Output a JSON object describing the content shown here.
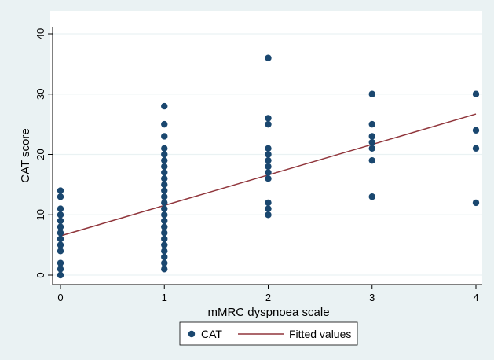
{
  "chart_data": {
    "type": "scatter",
    "xlabel": "mMRC dyspnoea scale",
    "ylabel": "CAT score",
    "xlim": [
      0,
      4
    ],
    "ylim": [
      0,
      40
    ],
    "x_ticks": [
      0,
      1,
      2,
      3,
      4
    ],
    "y_ticks": [
      0,
      10,
      20,
      30,
      40
    ],
    "x_tick_labels": [
      "0",
      "1",
      "2",
      "3",
      "4"
    ],
    "y_tick_labels": [
      "0",
      "10",
      "20",
      "30",
      "40"
    ],
    "grid": "horizontal",
    "legend_position": "bottom",
    "series": [
      {
        "name": "CAT",
        "kind": "scatter",
        "color": "#1a476f",
        "points": [
          [
            0,
            0
          ],
          [
            0,
            1
          ],
          [
            0,
            2
          ],
          [
            0,
            4
          ],
          [
            0,
            5
          ],
          [
            0,
            6
          ],
          [
            0,
            7
          ],
          [
            0,
            8
          ],
          [
            0,
            9
          ],
          [
            0,
            10
          ],
          [
            0,
            11
          ],
          [
            0,
            13
          ],
          [
            0,
            14
          ],
          [
            1,
            1
          ],
          [
            1,
            2
          ],
          [
            1,
            3
          ],
          [
            1,
            4
          ],
          [
            1,
            5
          ],
          [
            1,
            6
          ],
          [
            1,
            7
          ],
          [
            1,
            8
          ],
          [
            1,
            9
          ],
          [
            1,
            10
          ],
          [
            1,
            11
          ],
          [
            1,
            12
          ],
          [
            1,
            13
          ],
          [
            1,
            14
          ],
          [
            1,
            15
          ],
          [
            1,
            16
          ],
          [
            1,
            17
          ],
          [
            1,
            18
          ],
          [
            1,
            19
          ],
          [
            1,
            20
          ],
          [
            1,
            21
          ],
          [
            1,
            23
          ],
          [
            1,
            25
          ],
          [
            1,
            28
          ],
          [
            2,
            10
          ],
          [
            2,
            11
          ],
          [
            2,
            12
          ],
          [
            2,
            16
          ],
          [
            2,
            17
          ],
          [
            2,
            18
          ],
          [
            2,
            19
          ],
          [
            2,
            20
          ],
          [
            2,
            21
          ],
          [
            2,
            25
          ],
          [
            2,
            26
          ],
          [
            2,
            36
          ],
          [
            3,
            13
          ],
          [
            3,
            19
          ],
          [
            3,
            21
          ],
          [
            3,
            22
          ],
          [
            3,
            23
          ],
          [
            3,
            25
          ],
          [
            3,
            30
          ],
          [
            4,
            12
          ],
          [
            4,
            21
          ],
          [
            4,
            24
          ],
          [
            4,
            30
          ]
        ]
      },
      {
        "name": "Fitted values",
        "kind": "line",
        "color": "#90353b",
        "points": [
          [
            0,
            6.5
          ],
          [
            4,
            26.7
          ]
        ]
      }
    ]
  }
}
